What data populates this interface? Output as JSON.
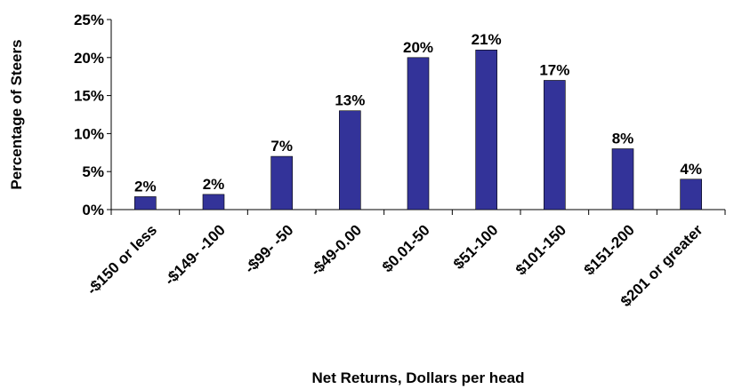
{
  "chart_data": {
    "type": "bar",
    "y_label": "Percentage of Steers",
    "x_label": "Net Returns, Dollars per head",
    "categories": [
      "-$150 or less",
      "-$149- -100",
      "-$99- -50",
      "-$49-0.00",
      "$0.01-50",
      "$51-100",
      "$101-150",
      "$151-200",
      "$201 or greater"
    ],
    "values": [
      1.7,
      2,
      7,
      13,
      20,
      21,
      17,
      8,
      4
    ],
    "value_labels": [
      "2%",
      "2%",
      "7%",
      "13%",
      "20%",
      "21%",
      "17%",
      "8%",
      "4%"
    ],
    "color": "#333399",
    "ylim": [
      0,
      25
    ],
    "yticks": [
      {
        "value": 0,
        "label": "0%"
      },
      {
        "value": 5,
        "label": "5%"
      },
      {
        "value": 10,
        "label": "10%"
      },
      {
        "value": 15,
        "label": "15%"
      },
      {
        "value": 20,
        "label": "20%"
      },
      {
        "value": 25,
        "label": "25%"
      }
    ]
  }
}
